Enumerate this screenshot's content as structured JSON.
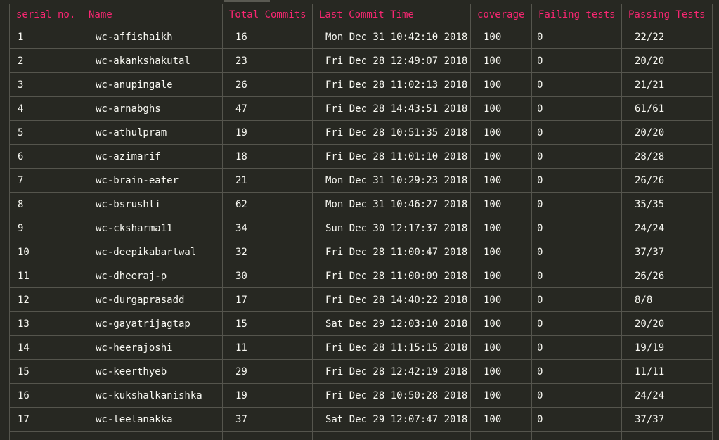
{
  "table": {
    "headers": [
      "serial no.",
      "Name",
      "Total Commits",
      "Last Commit Time",
      "coverage",
      "Failing tests",
      "Passing Tests"
    ],
    "rows": [
      [
        "1",
        "wc-affishaikh",
        "16",
        "Mon Dec 31 10:42:10 2018",
        "100",
        "0",
        "22/22"
      ],
      [
        "2",
        "wc-akankshakutal",
        "23",
        "Fri Dec 28 12:49:07 2018",
        "100",
        "0",
        "20/20"
      ],
      [
        "3",
        "wc-anupingale",
        "26",
        "Fri Dec 28 11:02:13 2018",
        "100",
        "0",
        "21/21"
      ],
      [
        "4",
        "wc-arnabghs",
        "47",
        "Fri Dec 28 14:43:51 2018",
        "100",
        "0",
        "61/61"
      ],
      [
        "5",
        "wc-athulpram",
        "19",
        "Fri Dec 28 10:51:35 2018",
        "100",
        "0",
        "20/20"
      ],
      [
        "6",
        "wc-azimarif",
        "18",
        "Fri Dec 28 11:01:10 2018",
        "100",
        "0",
        "28/28"
      ],
      [
        "7",
        "wc-brain-eater",
        "21",
        "Mon Dec 31 10:29:23 2018",
        "100",
        "0",
        "26/26"
      ],
      [
        "8",
        "wc-bsrushti",
        "62",
        "Mon Dec 31 10:46:27 2018",
        "100",
        "0",
        "35/35"
      ],
      [
        "9",
        "wc-cksharma11",
        "34",
        "Sun Dec 30 12:17:37 2018",
        "100",
        "0",
        "24/24"
      ],
      [
        "10",
        "wc-deepikabartwal",
        "32",
        "Fri Dec 28 11:00:47 2018",
        "100",
        "0",
        "37/37"
      ],
      [
        "11",
        "wc-dheeraj-p",
        "30",
        "Fri Dec 28 11:00:09 2018",
        "100",
        "0",
        "26/26"
      ],
      [
        "12",
        "wc-durgaprasadd",
        "17",
        "Fri Dec 28 14:40:22 2018",
        "100",
        "0",
        "8/8"
      ],
      [
        "13",
        "wc-gayatrijagtap",
        "15",
        "Sat Dec 29 12:03:10 2018",
        "100",
        "0",
        "20/20"
      ],
      [
        "14",
        "wc-heerajoshi",
        "11",
        "Fri Dec 28 11:15:15 2018",
        "100",
        "0",
        "19/19"
      ],
      [
        "15",
        "wc-keerthyeb",
        "29",
        "Fri Dec 28 12:42:19 2018",
        "100",
        "0",
        "11/11"
      ],
      [
        "16",
        "wc-kukshalkanishka",
        "19",
        "Fri Dec 28 10:50:28 2018",
        "100",
        "0",
        "24/24"
      ],
      [
        "17",
        "wc-leelanakka",
        "37",
        "Sat Dec 29 12:07:47 2018",
        "100",
        "0",
        "37/37"
      ]
    ]
  },
  "colors": {
    "background": "#272822",
    "header_text": "#f92672",
    "cell_text": "#f8f8f2",
    "border": "#55554d"
  }
}
